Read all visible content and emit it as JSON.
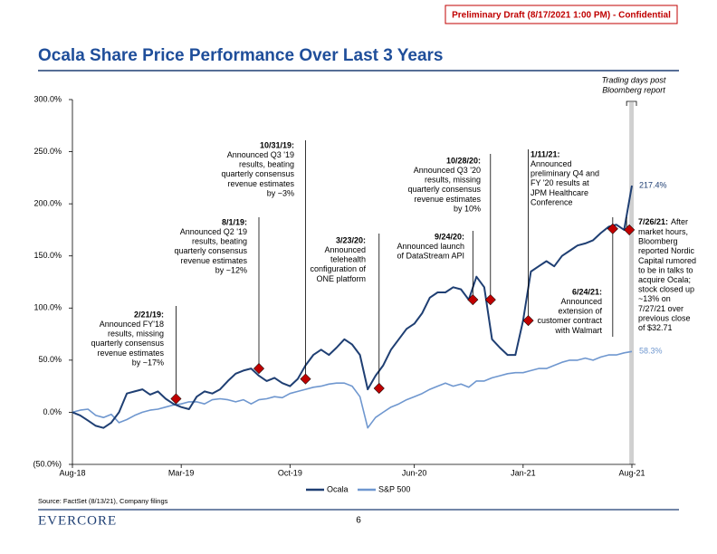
{
  "header": {
    "draft": "Preliminary Draft (8/17/2021 1:00 PM) - Confidential"
  },
  "footer": {
    "logo": "EVERCORE",
    "page": "6"
  },
  "chart_data": {
    "type": "line",
    "title": "Ocala Share Price Performance Over Last 3 Years",
    "source": "Source: FactSet (8/13/21), Company filings",
    "shade_label": [
      "Trading days post",
      "Bloomberg report"
    ],
    "categories": [
      "Aug-18",
      null,
      null,
      null,
      null,
      null,
      null,
      null,
      null,
      null,
      null,
      null,
      null,
      null,
      "Mar-19",
      null,
      null,
      null,
      null,
      null,
      null,
      null,
      null,
      null,
      null,
      null,
      null,
      null,
      "Oct-19",
      null,
      null,
      null,
      null,
      null,
      null,
      null,
      null,
      null,
      null,
      null,
      null,
      null,
      null,
      null,
      "Jun-20",
      null,
      null,
      null,
      null,
      null,
      null,
      null,
      null,
      null,
      null,
      null,
      null,
      null,
      "Jan-21",
      null,
      null,
      null,
      null,
      null,
      null,
      null,
      null,
      null,
      null,
      null,
      null,
      null,
      "Aug-21"
    ],
    "ylim": [
      -50,
      300
    ],
    "yticks": [
      {
        "value": -50,
        "label": "(50.0%)"
      },
      {
        "value": 0,
        "label": "0.0%"
      },
      {
        "value": 50,
        "label": "50.0%"
      },
      {
        "value": 100,
        "label": "100.0%"
      },
      {
        "value": 150,
        "label": "150.0%"
      },
      {
        "value": 200,
        "label": "200.0%"
      },
      {
        "value": 250,
        "label": "250.0%"
      },
      {
        "value": 300,
        "label": "300.0%"
      }
    ],
    "series": [
      {
        "name": "Ocala",
        "color": "#1f3f73",
        "values": [
          0,
          -3,
          -8,
          -13,
          -15,
          -10,
          0,
          18,
          20,
          22,
          17,
          20,
          13,
          8,
          5,
          3,
          15,
          20,
          18,
          22,
          30,
          37,
          40,
          42,
          35,
          30,
          33,
          28,
          25,
          32,
          45,
          55,
          60,
          55,
          62,
          70,
          65,
          55,
          22,
          35,
          45,
          60,
          70,
          80,
          85,
          95,
          110,
          115,
          115,
          120,
          118,
          108,
          130,
          120,
          70,
          62,
          55,
          55,
          88,
          135,
          140,
          145,
          140,
          150,
          155,
          160,
          162,
          165,
          172,
          178,
          180,
          175,
          217.4
        ],
        "value_labels": [
          null,
          null,
          null,
          null,
          null,
          null,
          null,
          null,
          null,
          null,
          null,
          null,
          null,
          null,
          null,
          null,
          null,
          null,
          null,
          null,
          null,
          null,
          null,
          null,
          null,
          null,
          null,
          null,
          null,
          null,
          null,
          null,
          null,
          null,
          null,
          null,
          null,
          null,
          null,
          null,
          null,
          null,
          null,
          null,
          null,
          null,
          null,
          null,
          null,
          null,
          null,
          null,
          null,
          null,
          null,
          null,
          null,
          null,
          null,
          null,
          null,
          null,
          null,
          null,
          null,
          null,
          null,
          null,
          null,
          null,
          null,
          null,
          "217.4%"
        ]
      },
      {
        "name": "S&P 500",
        "color": "#6f97cf",
        "values": [
          0,
          2,
          3,
          -3,
          -5,
          -2,
          -10,
          -7,
          -3,
          0,
          2,
          3,
          5,
          7,
          8,
          10,
          10,
          8,
          12,
          13,
          12,
          10,
          12,
          8,
          12,
          13,
          15,
          14,
          18,
          20,
          22,
          24,
          25,
          27,
          28,
          28,
          25,
          15,
          -15,
          -5,
          0,
          5,
          8,
          12,
          15,
          18,
          22,
          25,
          28,
          25,
          27,
          24,
          30,
          30,
          33,
          35,
          37,
          38,
          38,
          40,
          42,
          42,
          45,
          48,
          50,
          50,
          52,
          50,
          53,
          55,
          55,
          57,
          58.3
        ],
        "value_labels": [
          null,
          null,
          null,
          null,
          null,
          null,
          null,
          null,
          null,
          null,
          null,
          null,
          null,
          null,
          null,
          null,
          null,
          null,
          null,
          null,
          null,
          null,
          null,
          null,
          null,
          null,
          null,
          null,
          null,
          null,
          null,
          null,
          null,
          null,
          null,
          null,
          null,
          null,
          null,
          null,
          null,
          null,
          null,
          null,
          null,
          null,
          null,
          null,
          null,
          null,
          null,
          null,
          null,
          null,
          null,
          null,
          null,
          null,
          null,
          null,
          null,
          null,
          null,
          null,
          null,
          null,
          null,
          null,
          null,
          null,
          null,
          null,
          "58.3%"
        ]
      }
    ],
    "marker_color": "#c00000",
    "annotations": [
      {
        "date": "2/21/19:",
        "value": 13,
        "lines": [
          "Announced FY'18",
          "results, missing",
          "quarterly consensus",
          "revenue estimates",
          "by ~17%"
        ]
      },
      {
        "date": "8/1/19:",
        "value": 42,
        "lines": [
          "Announced Q2 '19",
          "results, beating",
          "quarterly consensus",
          "revenue estimates",
          "by ~12%"
        ]
      },
      {
        "date": "10/31/19:",
        "value": 32,
        "lines": [
          "Announced Q3 '19",
          "results, beating",
          "quarterly consensus",
          "revenue estimates",
          "by ~3%"
        ]
      },
      {
        "date": "3/23/20:",
        "value": 23,
        "lines": [
          "Announced",
          "telehealth",
          "configuration of",
          "ONE platform"
        ]
      },
      {
        "date": "9/24/20:",
        "value": 108,
        "lines": [
          "Announced launch",
          "of DataStream API"
        ]
      },
      {
        "date": "10/28/20:",
        "value": 108,
        "lines": [
          "Announced Q3 '20",
          "results, missing",
          "quarterly consensus",
          "revenue estimates",
          "by 10%"
        ]
      },
      {
        "date": "1/11/21:",
        "value": 88,
        "lines": [
          "Announced",
          "preliminary Q4 and",
          "FY '20 results at",
          "JPM Healthcare",
          "Conference"
        ]
      },
      {
        "date": "6/24/21:",
        "value": 176,
        "lines": [
          "Announced",
          "extension of",
          "customer contract",
          "with Walmart"
        ]
      },
      {
        "date": "7/26/21:",
        "value": 175,
        "lines": [
          "After",
          "market hours,",
          "Bloomberg",
          "reported Nordic",
          "Capital rumored",
          "to be in talks to",
          "acquire Ocala;",
          "stock closed up",
          "~13% on",
          "7/27/21 over",
          "previous close",
          "of $32.71"
        ]
      }
    ]
  }
}
